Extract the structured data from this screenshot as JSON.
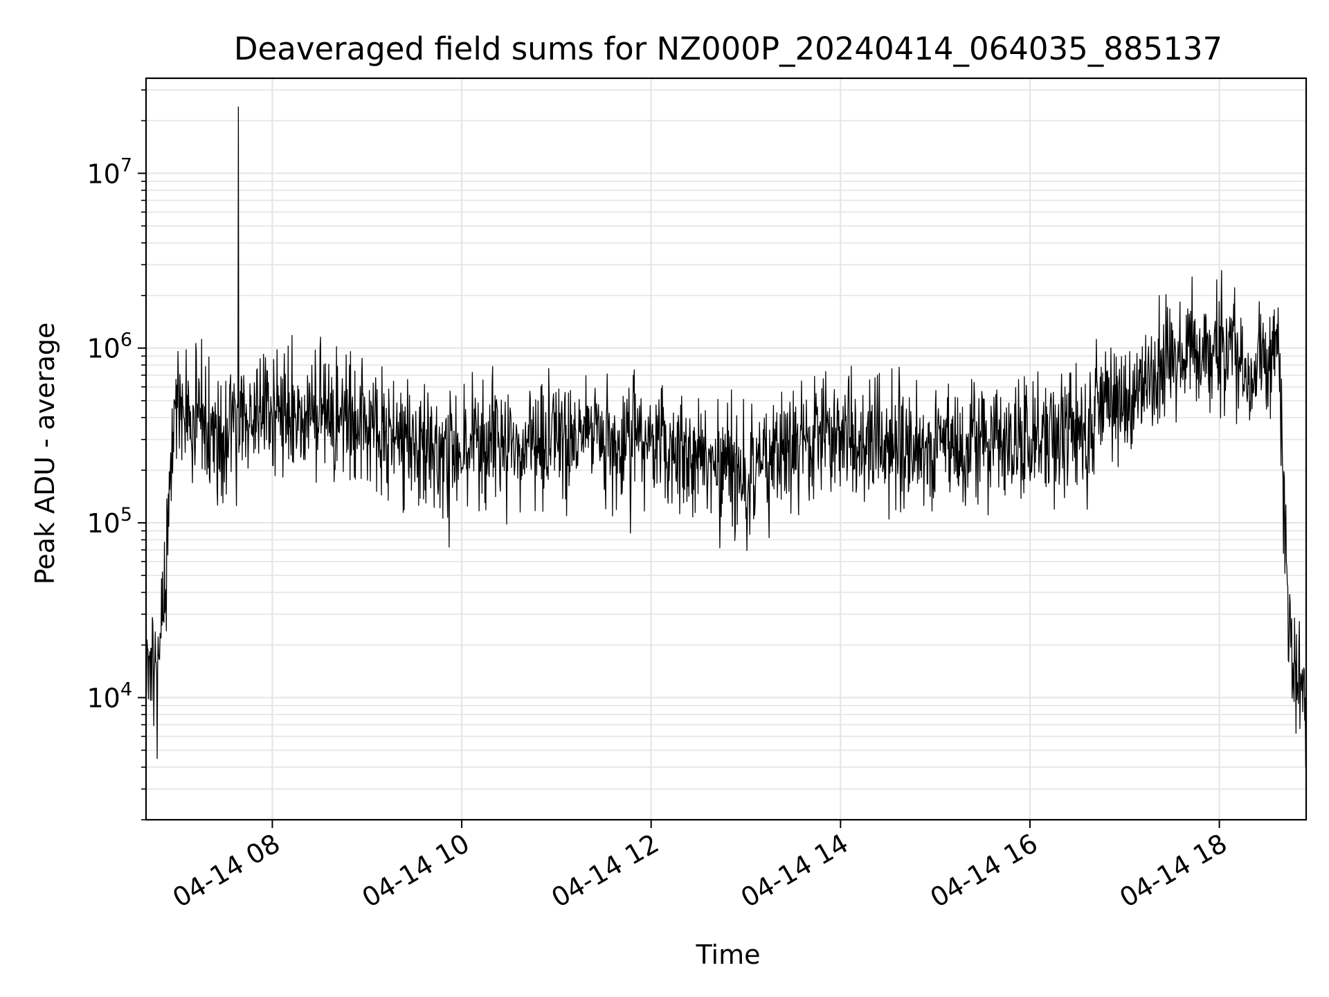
{
  "chart_data": {
    "type": "line",
    "title": "Deaveraged field sums for NZ000P_20240414_064035_885137",
    "xlabel": "Time",
    "ylabel": "Peak ADU - average",
    "y_scale": "log",
    "ylim": [
      2000,
      35000000
    ],
    "xlim": [
      "2024-04-14 06:40",
      "2024-04-14 18:55"
    ],
    "grid": true,
    "grid_color": "#e6e6e6",
    "line_color": "#000000",
    "x_ticks": [
      {
        "value": "2024-04-14 08:00",
        "label": "04-14 08"
      },
      {
        "value": "2024-04-14 10:00",
        "label": "04-14 10"
      },
      {
        "value": "2024-04-14 12:00",
        "label": "04-14 12"
      },
      {
        "value": "2024-04-14 14:00",
        "label": "04-14 14"
      },
      {
        "value": "2024-04-14 16:00",
        "label": "04-14 16"
      },
      {
        "value": "2024-04-14 18:00",
        "label": "04-14 18"
      }
    ],
    "y_ticks": [
      {
        "value": 10000,
        "base": "10",
        "exp": "4"
      },
      {
        "value": 100000,
        "base": "10",
        "exp": "5"
      },
      {
        "value": 1000000,
        "base": "10",
        "exp": "6"
      },
      {
        "value": 10000000,
        "base": "10",
        "exp": "7"
      }
    ],
    "series": [
      {
        "x": [
          "2024-04-14 06:40",
          "2024-04-14 06:47",
          "2024-04-14 06:53",
          "2024-04-14 06:58",
          "2024-04-14 07:05",
          "2024-04-14 07:15",
          "2024-04-14 07:30",
          "2024-04-14 07:32",
          "2024-04-14 07:45",
          "2024-04-14 08:00",
          "2024-04-14 08:30",
          "2024-04-14 09:00",
          "2024-04-14 09:30",
          "2024-04-14 10:00",
          "2024-04-14 10:30",
          "2024-04-14 11:00",
          "2024-04-14 11:30",
          "2024-04-14 12:00",
          "2024-04-14 12:30",
          "2024-04-14 13:00",
          "2024-04-14 13:30",
          "2024-04-14 14:00",
          "2024-04-14 14:30",
          "2024-04-14 15:00",
          "2024-04-14 15:30",
          "2024-04-14 16:00",
          "2024-04-14 16:30",
          "2024-04-14 17:00",
          "2024-04-14 17:30",
          "2024-04-14 18:00",
          "2024-04-14 18:20",
          "2024-04-14 18:38",
          "2024-04-14 18:42",
          "2024-04-14 18:47",
          "2024-04-14 18:55"
        ],
        "y": [
          14000,
          13000,
          60000,
          500000,
          400000,
          350000,
          300000,
          24000000,
          400000,
          450000,
          400000,
          380000,
          260000,
          250000,
          280000,
          320000,
          300000,
          280000,
          250000,
          170000,
          300000,
          320000,
          280000,
          260000,
          300000,
          280000,
          310000,
          550000,
          900000,
          1000000,
          700000,
          1000000,
          60000,
          14000,
          10000
        ],
        "noise_decades": 0.35
      }
    ]
  }
}
